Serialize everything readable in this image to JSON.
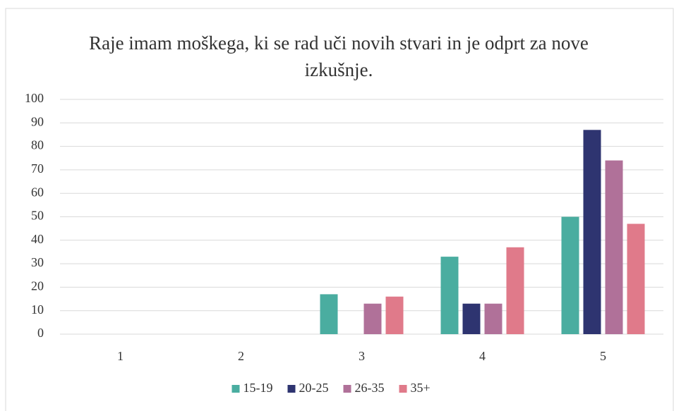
{
  "chart_data": {
    "type": "bar",
    "title": "Raje imam moškega, ki se rad uči novih stvari in je odprt za nove izkušnje.",
    "categories": [
      "1",
      "2",
      "3",
      "4",
      "5"
    ],
    "series": [
      {
        "name": "15-19",
        "color": "#4aada0",
        "values": [
          0,
          0,
          17,
          33,
          50
        ]
      },
      {
        "name": "20-25",
        "color": "#2e3470",
        "values": [
          0,
          0,
          0,
          13,
          87
        ]
      },
      {
        "name": "26-35",
        "color": "#b07199",
        "values": [
          0,
          0,
          13,
          13,
          74
        ]
      },
      {
        "name": "35+",
        "color": "#e07a8a",
        "values": [
          0,
          0,
          16,
          37,
          47
        ]
      }
    ],
    "ylim": [
      0,
      100
    ],
    "yticks": [
      0,
      10,
      20,
      30,
      40,
      50,
      60,
      70,
      80,
      90,
      100
    ],
    "grid": true,
    "legend": "bottom"
  }
}
